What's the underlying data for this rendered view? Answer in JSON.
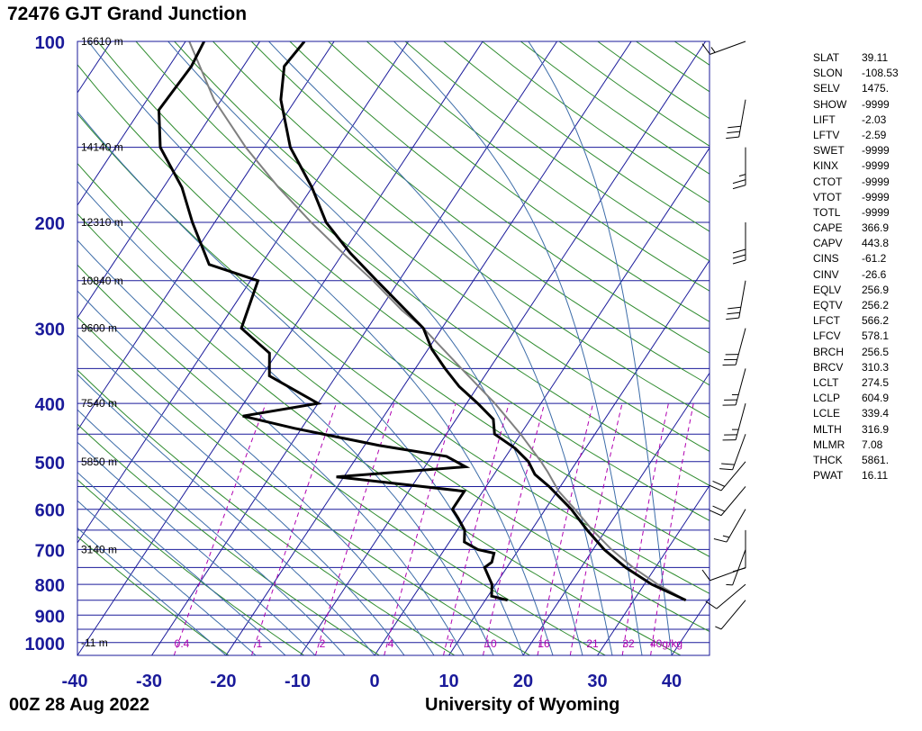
{
  "title": "72476 GJT Grand Junction",
  "footer": {
    "time": "00Z 28 Aug 2022",
    "source": "University of Wyoming"
  },
  "colors": {
    "isobar": "#1a1a9a",
    "isotherm": "#1a1a9a",
    "dry_adiabat": "#2e8b2e",
    "moist_adiabat": "#3c6ca8",
    "mixing_ratio": "#b000b0",
    "profile": "#000000",
    "parcel": "#808080",
    "axis_text": "#1a1a9a"
  },
  "chart_data": {
    "type": "skew-t",
    "xlabel": "",
    "ylabel": "",
    "x_ticks": [
      -40,
      -30,
      -20,
      -10,
      0,
      10,
      20,
      30,
      40
    ],
    "p_ticks": [
      100,
      200,
      300,
      400,
      500,
      600,
      700,
      800,
      900,
      1000
    ],
    "xlim": [
      -40,
      45
    ],
    "plim": [
      1050,
      100
    ],
    "height_labels": [
      {
        "p": 100,
        "label": "16610 m"
      },
      {
        "p": 150,
        "label": "14140 m"
      },
      {
        "p": 200,
        "label": "12310 m"
      },
      {
        "p": 250,
        "label": "10840 m"
      },
      {
        "p": 300,
        "label": "9600 m"
      },
      {
        "p": 400,
        "label": "7540 m"
      },
      {
        "p": 500,
        "label": "5850 m"
      },
      {
        "p": 700,
        "label": "3140 m"
      },
      {
        "p": 1000,
        "label": "-11 m"
      }
    ],
    "mixing_ratio_labels": [
      "0.4",
      "1",
      "2",
      "4",
      "7",
      "10",
      "16",
      "21",
      "32",
      "40g/kg"
    ],
    "temperature": [
      [
        850,
        37.0
      ],
      [
        800,
        31.0
      ],
      [
        750,
        26.0
      ],
      [
        700,
        21.5
      ],
      [
        650,
        17.5
      ],
      [
        600,
        13.5
      ],
      [
        550,
        8.5
      ],
      [
        525,
        5.5
      ],
      [
        500,
        3.5
      ],
      [
        475,
        0.5
      ],
      [
        450,
        -3.5
      ],
      [
        425,
        -5.0
      ],
      [
        400,
        -8.5
      ],
      [
        375,
        -12.5
      ],
      [
        350,
        -16.0
      ],
      [
        325,
        -19.5
      ],
      [
        300,
        -22.5
      ],
      [
        275,
        -27.5
      ],
      [
        250,
        -33.0
      ],
      [
        225,
        -39.0
      ],
      [
        200,
        -45.0
      ],
      [
        175,
        -50.0
      ],
      [
        150,
        -56.5
      ],
      [
        125,
        -62.0
      ],
      [
        110,
        -64.5
      ],
      [
        100,
        -64.0
      ]
    ],
    "dewpoint": [
      [
        850,
        13.0
      ],
      [
        837,
        10.5
      ],
      [
        800,
        9.5
      ],
      [
        750,
        7.0
      ],
      [
        735,
        7.5
      ],
      [
        710,
        7.0
      ],
      [
        700,
        4.5
      ],
      [
        680,
        2.0
      ],
      [
        650,
        1.0
      ],
      [
        620,
        -1.0
      ],
      [
        600,
        -2.5
      ],
      [
        560,
        -2.5
      ],
      [
        530,
        -21.0
      ],
      [
        510,
        -4.5
      ],
      [
        490,
        -8.0
      ],
      [
        470,
        -18.0
      ],
      [
        440,
        -31.0
      ],
      [
        420,
        -39.0
      ],
      [
        400,
        -30.0
      ],
      [
        360,
        -39.0
      ],
      [
        330,
        -41.0
      ],
      [
        300,
        -47.0
      ],
      [
        250,
        -49.0
      ],
      [
        235,
        -57.0
      ],
      [
        200,
        -63.0
      ],
      [
        175,
        -67.5
      ],
      [
        150,
        -74.0
      ],
      [
        130,
        -77.5
      ],
      [
        110,
        -77.0
      ],
      [
        100,
        -77.5
      ]
    ],
    "parcel": [
      [
        850,
        37.0
      ],
      [
        800,
        31.8
      ],
      [
        750,
        27.0
      ],
      [
        700,
        22.5
      ],
      [
        650,
        18.2
      ],
      [
        600,
        14.0
      ],
      [
        560,
        10.2
      ],
      [
        520,
        7.0
      ],
      [
        500,
        5.2
      ],
      [
        450,
        0.0
      ],
      [
        400,
        -6.2
      ],
      [
        350,
        -13.8
      ],
      [
        300,
        -22.5
      ],
      [
        280,
        -27.0
      ],
      [
        250,
        -33.5
      ],
      [
        225,
        -40.0
      ],
      [
        200,
        -47.0
      ],
      [
        175,
        -54.5
      ],
      [
        150,
        -62.5
      ],
      [
        125,
        -71.0
      ],
      [
        100,
        -79.5
      ]
    ],
    "wind_barbs": [
      {
        "p": 850,
        "dir": 220,
        "spd": 5
      },
      {
        "p": 800,
        "dir": 230,
        "spd": 10
      },
      {
        "p": 750,
        "dir": 250,
        "spd": 10
      },
      {
        "p": 700,
        "dir": 200,
        "spd": 5
      },
      {
        "p": 650,
        "dir": 180,
        "spd": 10
      },
      {
        "p": 600,
        "dir": 210,
        "spd": 15
      },
      {
        "p": 550,
        "dir": 220,
        "spd": 20
      },
      {
        "p": 500,
        "dir": 220,
        "spd": 20
      },
      {
        "p": 450,
        "dir": 200,
        "spd": 20
      },
      {
        "p": 400,
        "dir": 195,
        "spd": 25
      },
      {
        "p": 350,
        "dir": 195,
        "spd": 25
      },
      {
        "p": 300,
        "dir": 195,
        "spd": 30
      },
      {
        "p": 250,
        "dir": 190,
        "spd": 30
      },
      {
        "p": 200,
        "dir": 180,
        "spd": 30
      },
      {
        "p": 150,
        "dir": 180,
        "spd": 25
      },
      {
        "p": 125,
        "dir": 190,
        "spd": 30
      },
      {
        "p": 100,
        "dir": 250,
        "spd": 15
      }
    ]
  },
  "indices": [
    {
      "key": "SLAT",
      "value": "39.11"
    },
    {
      "key": "SLON",
      "value": "-108.53"
    },
    {
      "key": "SELV",
      "value": "1475."
    },
    {
      "key": "SHOW",
      "value": "-9999"
    },
    {
      "key": "LIFT",
      "value": "-2.03"
    },
    {
      "key": "LFTV",
      "value": "-2.59"
    },
    {
      "key": "SWET",
      "value": "-9999"
    },
    {
      "key": "KINX",
      "value": "-9999"
    },
    {
      "key": "CTOT",
      "value": "-9999"
    },
    {
      "key": "VTOT",
      "value": "-9999"
    },
    {
      "key": "TOTL",
      "value": "-9999"
    },
    {
      "key": "CAPE",
      "value": "366.9"
    },
    {
      "key": "CAPV",
      "value": "443.8"
    },
    {
      "key": "CINS",
      "value": "-61.2"
    },
    {
      "key": "CINV",
      "value": "-26.6"
    },
    {
      "key": "EQLV",
      "value": "256.9"
    },
    {
      "key": "EQTV",
      "value": "256.2"
    },
    {
      "key": "LFCT",
      "value": "566.2"
    },
    {
      "key": "LFCV",
      "value": "578.1"
    },
    {
      "key": "BRCH",
      "value": "256.5"
    },
    {
      "key": "BRCV",
      "value": "310.3"
    },
    {
      "key": "LCLT",
      "value": "274.5"
    },
    {
      "key": "LCLP",
      "value": "604.9"
    },
    {
      "key": "LCLE",
      "value": "339.4"
    },
    {
      "key": "MLTH",
      "value": "316.9"
    },
    {
      "key": "MLMR",
      "value": "7.08"
    },
    {
      "key": "THCK",
      "value": "5861."
    },
    {
      "key": "PWAT",
      "value": "16.11"
    }
  ]
}
